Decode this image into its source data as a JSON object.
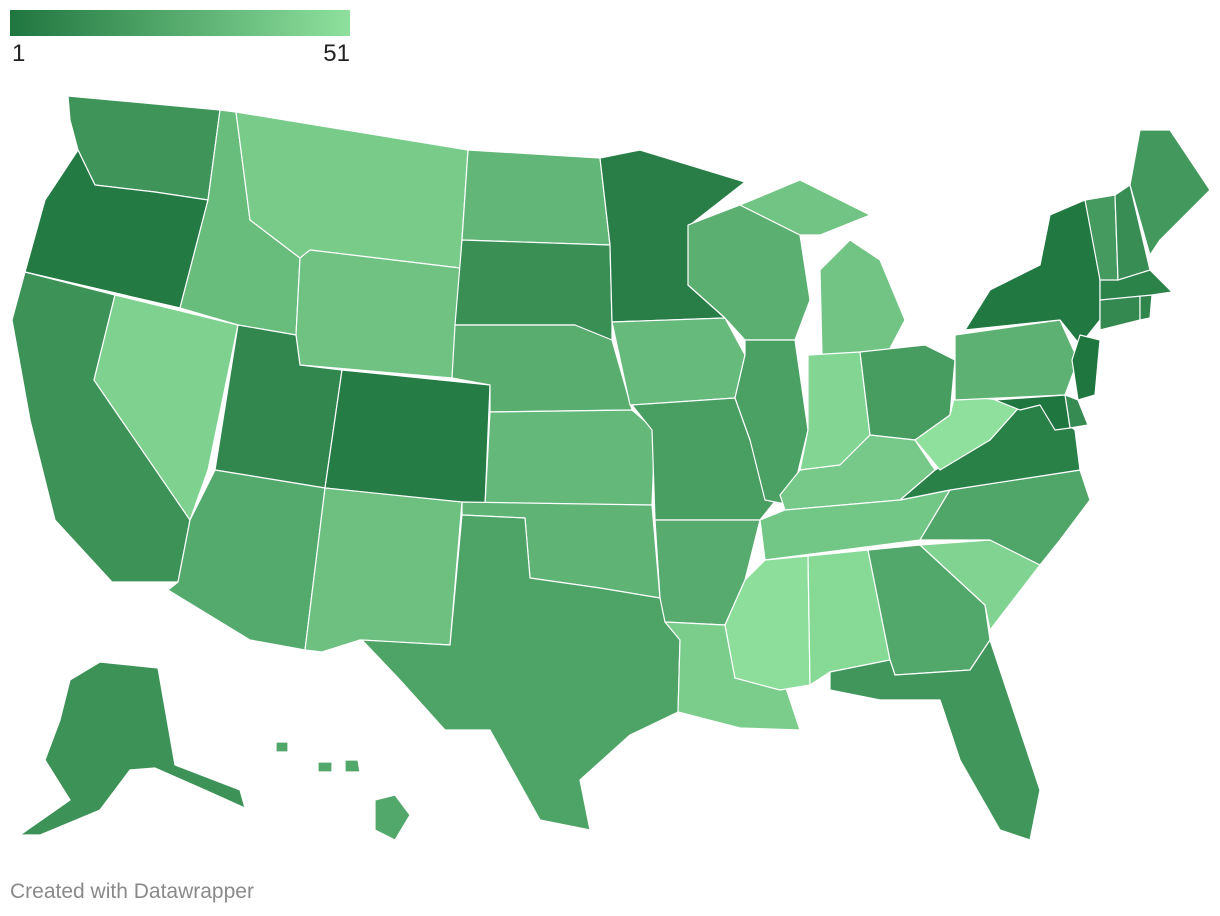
{
  "legend": {
    "min_label": "1",
    "max_label": "51",
    "color_min": "#1f763f",
    "color_max": "#8ee09c"
  },
  "credit": "Created with Datawrapper",
  "states": [
    {
      "id": "WA",
      "rank": 15
    },
    {
      "id": "OR",
      "rank": 3
    },
    {
      "id": "CA",
      "rank": 14
    },
    {
      "id": "NV",
      "rank": 44
    },
    {
      "id": "ID",
      "rank": 34
    },
    {
      "id": "MT",
      "rank": 41
    },
    {
      "id": "WY",
      "rank": 37
    },
    {
      "id": "UT",
      "rank": 9
    },
    {
      "id": "AZ",
      "rank": 25
    },
    {
      "id": "CO",
      "rank": 4
    },
    {
      "id": "NM",
      "rank": 36
    },
    {
      "id": "ND",
      "rank": 31
    },
    {
      "id": "SD",
      "rank": 13
    },
    {
      "id": "NE",
      "rank": 27
    },
    {
      "id": "KS",
      "rank": 32
    },
    {
      "id": "OK",
      "rank": 30
    },
    {
      "id": "TX",
      "rank": 22
    },
    {
      "id": "MN",
      "rank": 5
    },
    {
      "id": "IA",
      "rank": 33
    },
    {
      "id": "MO",
      "rank": 20
    },
    {
      "id": "AR",
      "rank": 26
    },
    {
      "id": "LA",
      "rank": 42
    },
    {
      "id": "WI",
      "rank": 28
    },
    {
      "id": "IL",
      "rank": 21
    },
    {
      "id": "MI",
      "rank": 38
    },
    {
      "id": "IN",
      "rank": 46
    },
    {
      "id": "OH",
      "rank": 19
    },
    {
      "id": "KY",
      "rank": 40
    },
    {
      "id": "TN",
      "rank": 39
    },
    {
      "id": "MS",
      "rank": 50
    },
    {
      "id": "AL",
      "rank": 48
    },
    {
      "id": "GA",
      "rank": 24
    },
    {
      "id": "FL",
      "rank": 16
    },
    {
      "id": "SC",
      "rank": 45
    },
    {
      "id": "NC",
      "rank": 23
    },
    {
      "id": "VA",
      "rank": 6
    },
    {
      "id": "WV",
      "rank": 51
    },
    {
      "id": "PA",
      "rank": 29
    },
    {
      "id": "NY",
      "rank": 2
    },
    {
      "id": "VT",
      "rank": 18
    },
    {
      "id": "NH",
      "rank": 12
    },
    {
      "id": "ME",
      "rank": 17
    },
    {
      "id": "MA",
      "rank": 7
    },
    {
      "id": "CT",
      "rank": 10
    },
    {
      "id": "RI",
      "rank": 8
    },
    {
      "id": "NJ",
      "rank": 1
    },
    {
      "id": "DE",
      "rank": 11
    },
    {
      "id": "MD",
      "rank": 1
    },
    {
      "id": "AK",
      "rank": 14
    },
    {
      "id": "HI",
      "rank": 24
    }
  ]
}
